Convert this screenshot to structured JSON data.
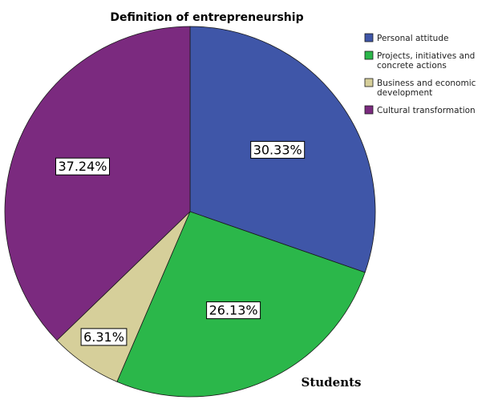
{
  "chart_data": {
    "type": "pie",
    "title": "Definition of entrepreneurship",
    "categories": [
      "Personal attitude",
      "Projects, initiatives and concrete actions",
      "Business and economic development",
      "Cultural transformation"
    ],
    "legend_lines": [
      [
        "Personal attitude"
      ],
      [
        "Projects, initiatives and",
        "concrete actions"
      ],
      [
        "Business and economic",
        "development"
      ],
      [
        "Cultural transformation"
      ]
    ],
    "values": [
      30.33,
      26.13,
      6.31,
      37.24
    ],
    "value_labels": [
      "30.33%",
      "26.13%",
      "6.31%",
      "37.24%"
    ],
    "colors": [
      "#3f56a8",
      "#2bb74a",
      "#d6cf9a",
      "#7b2a7f"
    ],
    "legend_position": "top-right",
    "start_angle": "12 o'clock",
    "direction": "clockwise"
  },
  "caption": "Students"
}
